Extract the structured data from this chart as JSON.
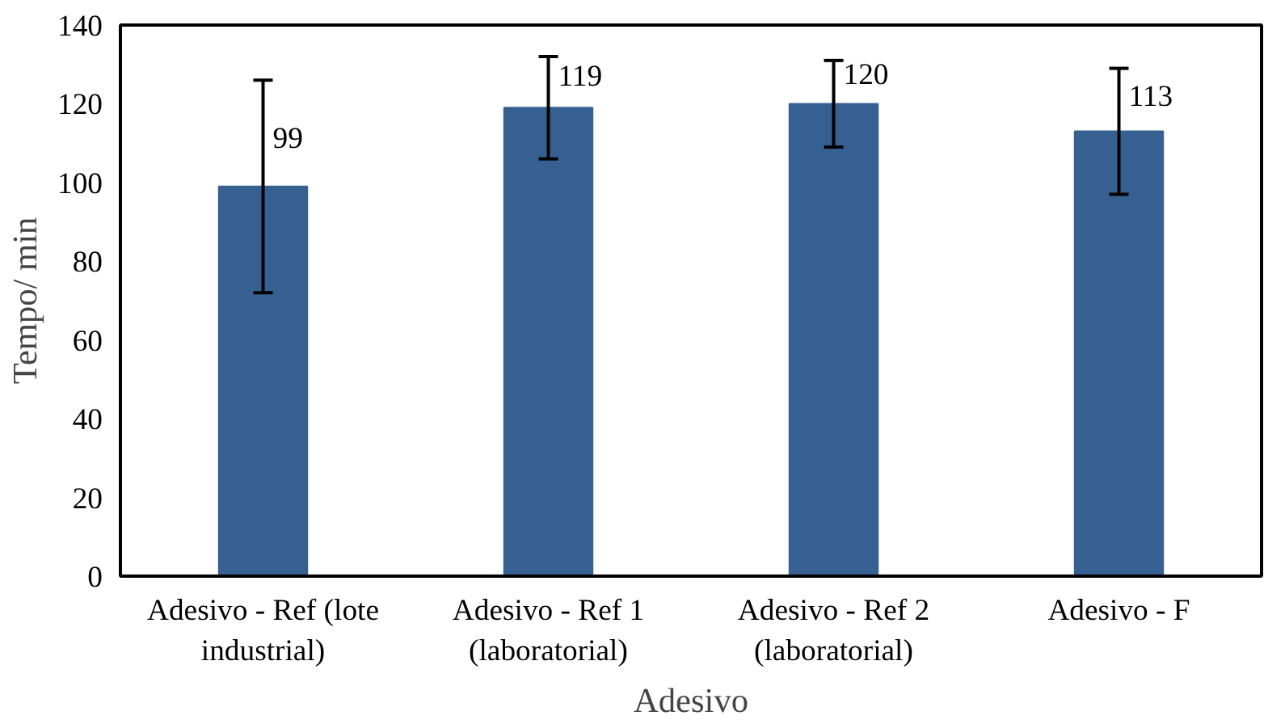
{
  "chart_data": {
    "type": "bar",
    "xlabel": "Adesivo",
    "ylabel": "Tempo/ min",
    "categories": [
      "Adesivo - Ref (lote industrial)",
      "Adesivo - Ref 1 (laboratorial)",
      "Adesivo - Ref 2 (laboratorial)",
      "Adesivo - F"
    ],
    "values": [
      99,
      119,
      120,
      113
    ],
    "color": "#376092",
    "errors": [
      27,
      13,
      11,
      16
    ],
    "ylim": [
      0,
      140
    ],
    "yticks": [
      0,
      20,
      40,
      60,
      80,
      100,
      120,
      140
    ],
    "grid": false,
    "data_labels": true
  }
}
